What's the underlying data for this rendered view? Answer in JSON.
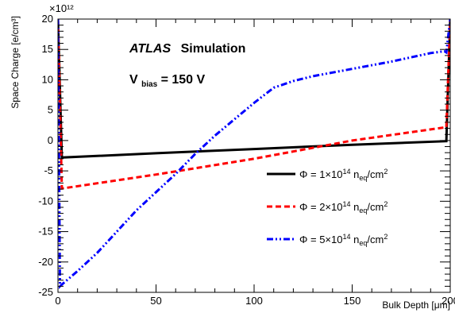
{
  "chart_data": {
    "type": "line",
    "title": "",
    "xlabel": "Bulk Depth [μm]",
    "ylabel": "Space Charge [e/cm³]",
    "y_exponent": "×10¹²",
    "xlim": [
      0,
      200
    ],
    "ylim": [
      -25,
      20
    ],
    "x_ticks": [
      0,
      50,
      100,
      150,
      200
    ],
    "y_ticks": [
      -25,
      -20,
      -15,
      -10,
      -5,
      0,
      5,
      10,
      15,
      20
    ],
    "annotations": {
      "atlas": "ATLAS",
      "simulation": "Simulation",
      "vbias_main": "V",
      "vbias_sub": "bias",
      "vbias_value": " = 150 V"
    },
    "series": [
      {
        "name": "Φ = 1×10¹⁴ n_eq/cm²",
        "legend_pre": "Φ = 1×10",
        "legend_exp": "14",
        "legend_n": " n",
        "legend_sub": "eq",
        "legend_post": "/cm",
        "legend_post_exp": "2",
        "color": "#000000",
        "style": "solid",
        "x": [
          0,
          2,
          50,
          100,
          150,
          198,
          200
        ],
        "y": [
          20,
          -2.8,
          -2.1,
          -1.4,
          -0.7,
          -0.1,
          20
        ]
      },
      {
        "name": "Φ = 2×10¹⁴ n_eq/cm²",
        "legend_pre": "Φ = 2×10",
        "legend_exp": "14",
        "legend_n": " n",
        "legend_sub": "eq",
        "legend_post": "/cm",
        "legend_post_exp": "2",
        "color": "#ff0000",
        "style": "dashed",
        "x": [
          0,
          2,
          50,
          100,
          150,
          198,
          200
        ],
        "y": [
          20,
          -7.9,
          -5.6,
          -3.0,
          0.0,
          2.2,
          20
        ]
      },
      {
        "name": "Φ = 5×10¹⁴ n_eq/cm²",
        "legend_pre": "Φ = 5×10",
        "legend_exp": "14",
        "legend_n": " n",
        "legend_sub": "eq",
        "legend_post": "/cm",
        "legend_post_exp": "2",
        "color": "#0000ff",
        "style": "dashdot",
        "x": [
          0,
          1,
          2,
          10,
          20,
          30,
          40,
          50,
          60,
          70,
          80,
          90,
          100,
          110,
          120,
          130,
          150,
          170,
          190,
          197,
          198,
          200
        ],
        "y": [
          20,
          -24,
          -23.7,
          -21.5,
          -18.5,
          -15.0,
          -11.5,
          -8.5,
          -5.5,
          -2.2,
          0.8,
          3.5,
          6.2,
          8.7,
          9.8,
          10.6,
          11.8,
          13.0,
          14.4,
          14.7,
          14.5,
          20
        ]
      }
    ],
    "legend_position": "right-middle",
    "grid": false
  }
}
